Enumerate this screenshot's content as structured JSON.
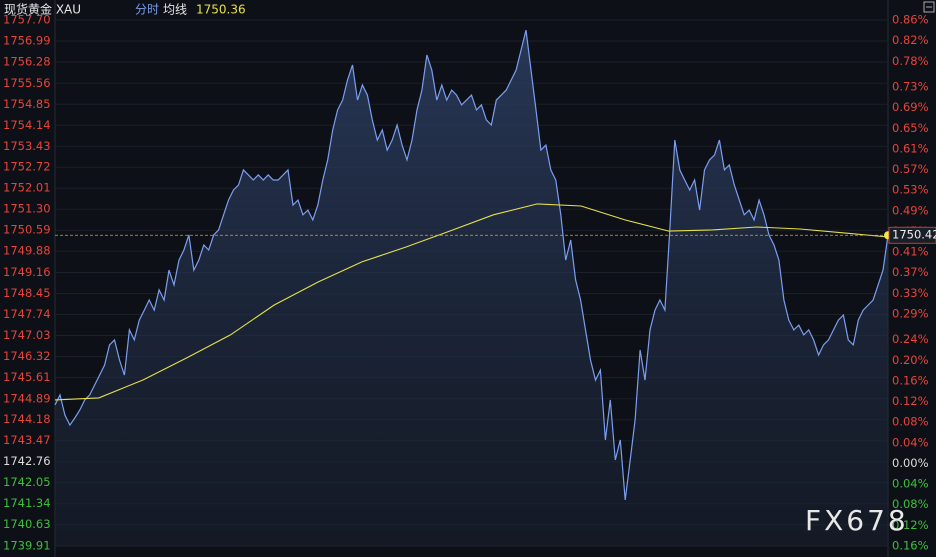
{
  "chart_data": {
    "type": "line",
    "title": "现货黄金 XAU",
    "series": [
      {
        "name": "分时",
        "color": "#7b9ef0",
        "values": [
          1744.68,
          1745.02,
          1744.34,
          1744.0,
          1744.24,
          1744.51,
          1744.85,
          1745.02,
          1745.36,
          1745.69,
          1746.03,
          1746.71,
          1746.88,
          1746.2,
          1745.69,
          1747.22,
          1746.88,
          1747.55,
          1747.89,
          1748.23,
          1747.89,
          1748.57,
          1748.23,
          1749.24,
          1748.74,
          1749.58,
          1749.92,
          1750.43,
          1749.24,
          1749.58,
          1750.09,
          1749.92,
          1750.43,
          1750.6,
          1751.11,
          1751.61,
          1751.95,
          1752.12,
          1752.63,
          1752.46,
          1752.29,
          1752.46,
          1752.29,
          1752.46,
          1752.29,
          1752.29,
          1752.46,
          1752.63,
          1751.44,
          1751.61,
          1751.11,
          1751.27,
          1750.94,
          1751.44,
          1752.29,
          1752.97,
          1753.98,
          1754.66,
          1754.99,
          1755.67,
          1756.18,
          1754.99,
          1755.5,
          1755.16,
          1754.32,
          1753.64,
          1753.98,
          1753.3,
          1753.64,
          1754.15,
          1753.47,
          1752.97,
          1753.64,
          1754.66,
          1755.33,
          1756.52,
          1756.01,
          1754.99,
          1755.5,
          1754.99,
          1755.33,
          1755.16,
          1754.83,
          1754.99,
          1755.16,
          1754.66,
          1754.83,
          1754.32,
          1754.15,
          1754.99,
          1755.16,
          1755.33,
          1755.67,
          1756.01,
          1756.69,
          1757.36,
          1756.01,
          1754.66,
          1753.3,
          1753.47,
          1752.63,
          1752.29,
          1751.11,
          1749.58,
          1750.26,
          1748.91,
          1748.23,
          1747.22,
          1746.2,
          1745.52,
          1745.86,
          1743.5,
          1744.85,
          1742.82,
          1743.5,
          1741.47,
          1742.82,
          1744.17,
          1746.54,
          1745.52,
          1747.22,
          1747.89,
          1748.23,
          1747.89,
          1750.6,
          1753.64,
          1752.63,
          1752.29,
          1751.95,
          1752.29,
          1751.27,
          1752.63,
          1752.97,
          1753.13,
          1753.64,
          1752.63,
          1752.8,
          1752.12,
          1751.61,
          1751.11,
          1751.27,
          1750.94,
          1751.61,
          1751.11,
          1750.43,
          1750.09,
          1749.58,
          1748.23,
          1747.55,
          1747.22,
          1747.38,
          1747.05,
          1747.22,
          1746.88,
          1746.37,
          1746.71,
          1746.88,
          1747.22,
          1747.55,
          1747.72,
          1746.88,
          1746.71,
          1747.55,
          1747.89,
          1748.06,
          1748.23,
          1748.74,
          1749.24,
          1750.42
        ]
      },
      {
        "name": "均线",
        "color": "#e6e04a",
        "values": [
          1744.85,
          1744.92,
          1745.52,
          1746.27,
          1747.05,
          1748.06,
          1748.84,
          1749.52,
          1750.02,
          1750.56,
          1751.11,
          1751.48,
          1751.41,
          1750.94,
          1750.56,
          1750.6,
          1750.7,
          1750.63,
          1750.5,
          1750.36
        ]
      }
    ],
    "average_value": 1750.36,
    "last_value": 1750.42,
    "watermark": "FX678",
    "ylim": [
      1739.91,
      1757.7
    ],
    "yticks": [
      {
        "value": 1757.7,
        "label": "1757.70"
      },
      1756.99,
      1756.28,
      1755.56,
      1754.85,
      1754.14,
      1753.43,
      1752.72,
      1752.01,
      {
        "value": 1751.3,
        "label": "1751.30"
      },
      1750.59,
      1749.88,
      1749.16,
      1748.45,
      1747.74,
      1747.03,
      1746.32,
      1745.61,
      1744.89,
      1744.18,
      1743.47,
      1742.76,
      1742.05,
      1741.34,
      1740.63,
      1739.91
    ],
    "y2lim": [
      -0.16,
      0.86
    ],
    "y2ticks": [
      {
        "value": 0.86,
        "label": "0.86%"
      },
      {
        "value": 0.82,
        "label": "0.82%"
      },
      {
        "value": 0.78,
        "label": "0.78%"
      },
      {
        "value": 0.73,
        "label": "0.73%"
      },
      {
        "value": 0.69,
        "label": "0.69%"
      },
      {
        "value": 0.65,
        "label": "0.65%"
      },
      {
        "value": 0.61,
        "label": "0.61%"
      },
      {
        "value": 0.57,
        "label": "0.57%"
      },
      {
        "value": 0.53,
        "label": "0.53%"
      },
      {
        "value": 0.49,
        "label": "0.49%"
      },
      {
        "value": 0.45,
        "label": "0.45%"
      },
      {
        "value": 0.41,
        "label": "0.41%"
      },
      {
        "value": 0.37,
        "label": "0.37%"
      },
      {
        "value": 0.33,
        "label": "0.33%"
      },
      {
        "value": 0.29,
        "label": "0.29%"
      },
      {
        "value": 0.24,
        "label": "0.24%"
      },
      {
        "value": 0.2,
        "label": "0.20%"
      },
      {
        "value": 0.16,
        "label": "0.16%"
      },
      {
        "value": 0.12,
        "label": "0.12%"
      },
      {
        "value": 0.08,
        "label": "0.08%"
      },
      {
        "value": 0.04,
        "label": "0.04%"
      },
      {
        "value": 0,
        "label": "0.00%"
      },
      {
        "value": -0.04,
        "label": "0.04%"
      },
      {
        "value": -0.08,
        "label": "0.08%"
      },
      {
        "value": -0.12,
        "label": "0.12%"
      },
      {
        "value": -0.16,
        "label": "0.16%"
      }
    ],
    "up_color": "#e8443a",
    "down_color": "#3cc03c",
    "flat_color": "#dddddd",
    "grid": true
  }
}
